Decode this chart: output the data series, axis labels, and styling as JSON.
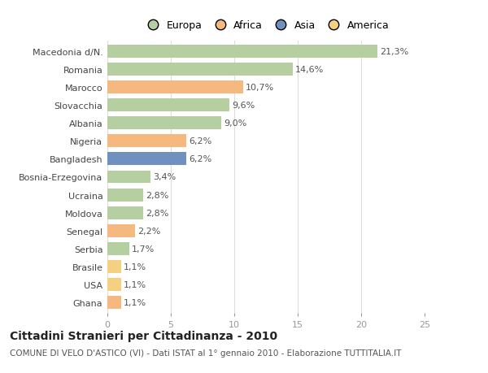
{
  "categories": [
    "Macedonia d/N.",
    "Romania",
    "Marocco",
    "Slovacchia",
    "Albania",
    "Nigeria",
    "Bangladesh",
    "Bosnia-Erzegovina",
    "Ucraina",
    "Moldova",
    "Senegal",
    "Serbia",
    "Brasile",
    "USA",
    "Ghana"
  ],
  "values": [
    21.3,
    14.6,
    10.7,
    9.6,
    9.0,
    6.2,
    6.2,
    3.4,
    2.8,
    2.8,
    2.2,
    1.7,
    1.1,
    1.1,
    1.1
  ],
  "labels": [
    "21,3%",
    "14,6%",
    "10,7%",
    "9,6%",
    "9,0%",
    "6,2%",
    "6,2%",
    "3,4%",
    "2,8%",
    "2,8%",
    "2,2%",
    "1,7%",
    "1,1%",
    "1,1%",
    "1,1%"
  ],
  "colors": [
    "#b5cfa0",
    "#b5cfa0",
    "#f5b97f",
    "#b5cfa0",
    "#b5cfa0",
    "#f5b97f",
    "#7090c0",
    "#b5cfa0",
    "#b5cfa0",
    "#b5cfa0",
    "#f5b97f",
    "#b5cfa0",
    "#f5d080",
    "#f5d080",
    "#f5b97f"
  ],
  "legend_labels": [
    "Europa",
    "Africa",
    "Asia",
    "America"
  ],
  "legend_colors": [
    "#b5cfa0",
    "#f5b97f",
    "#7090c0",
    "#f5d080"
  ],
  "xlim": [
    0,
    25
  ],
  "xticks": [
    0,
    5,
    10,
    15,
    20,
    25
  ],
  "title": "Cittadini Stranieri per Cittadinanza - 2010",
  "subtitle": "COMUNE DI VELO D'ASTICO (VI) - Dati ISTAT al 1° gennaio 2010 - Elaborazione TUTTITALIA.IT",
  "bar_height": 0.72,
  "background_color": "#ffffff",
  "grid_color": "#dddddd",
  "label_fontsize": 8,
  "tick_fontsize": 8,
  "title_fontsize": 10,
  "subtitle_fontsize": 7.5
}
